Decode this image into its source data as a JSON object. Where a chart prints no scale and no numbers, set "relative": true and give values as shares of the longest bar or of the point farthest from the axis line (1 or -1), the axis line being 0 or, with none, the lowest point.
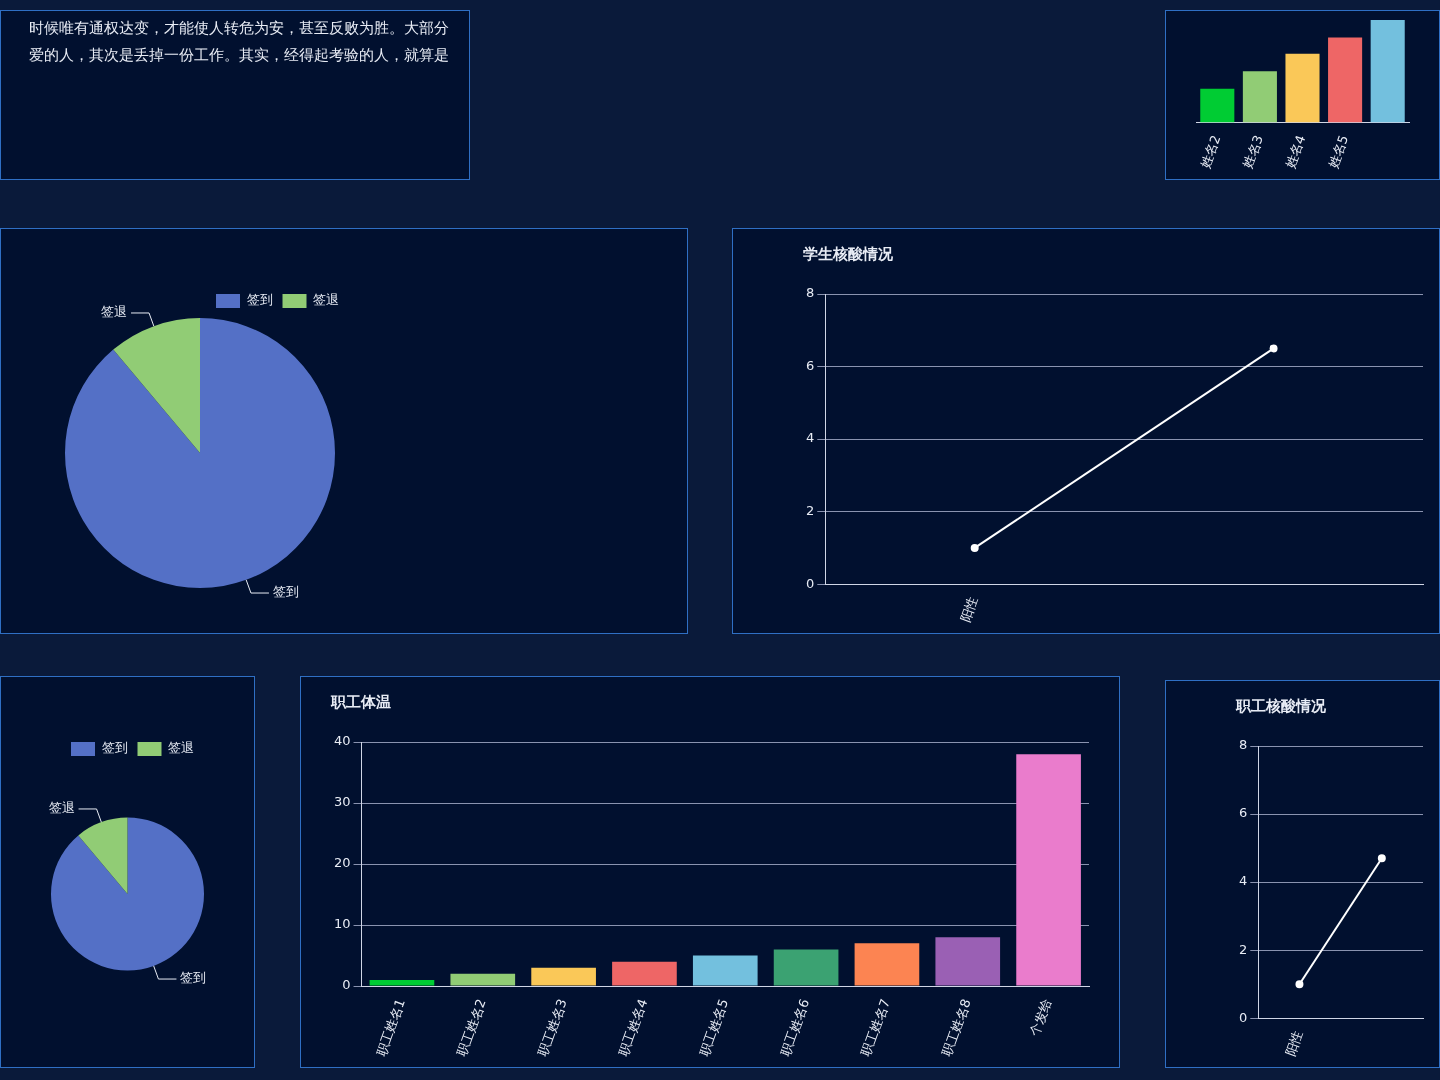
{
  "chart_data": [
    {
      "type": "other",
      "annotations": [
        "时候唯有通权达变，才能使人转危为安，甚至反败为胜。大部分",
        "爱的人，其次是丢掉一份工作。其实，经得起考验的人，就算是"
      ]
    },
    {
      "type": "bar",
      "categories": [
        "姓名2",
        "姓名3",
        "姓名4",
        "姓名5",
        null
      ],
      "values": [
        0.33,
        0.5,
        0.67,
        0.83,
        1
      ],
      "colors": [
        "#00cc33",
        "#91cc75",
        "#fac858",
        "#ee6666",
        "#73c0de"
      ],
      "relative": true
    },
    {
      "type": "pie",
      "categories": [
        "签到",
        "签退"
      ],
      "values": [
        88.89,
        11.11
      ],
      "colors": [
        "#5470c6",
        "#91cc75"
      ],
      "legend": "top right"
    },
    {
      "type": "line",
      "title": "学生核酸情况",
      "categories": [
        "阳性",
        null
      ],
      "series": [
        {
          "color": "#ffffff",
          "values": [
            1,
            6.5
          ]
        }
      ],
      "ylim": [
        0,
        8
      ],
      "yticks": [
        0,
        2,
        4,
        6,
        8
      ],
      "grid": "y",
      "marker": "circle"
    },
    {
      "type": "pie",
      "categories": [
        "签到",
        "签退"
      ],
      "values": [
        88.89,
        11.11
      ],
      "colors": [
        "#5470c6",
        "#91cc75"
      ],
      "legend": "top right"
    },
    {
      "type": "bar",
      "title": "职工体温",
      "categories": [
        "职工姓名1",
        "职工姓名2",
        "职工姓名3",
        "职工姓名4",
        "职工姓名5",
        "职工姓名6",
        "职工姓名7",
        "职工姓名8",
        "个发给"
      ],
      "values": [
        1,
        2,
        3,
        4,
        5,
        6,
        7,
        8,
        38
      ],
      "colors": [
        "#00cc33",
        "#91cc75",
        "#fac858",
        "#ee6666",
        "#73c0de",
        "#3ba272",
        "#fc8452",
        "#9a60b4",
        "#ea7ccc"
      ],
      "ylim": [
        0,
        40
      ],
      "yticks": [
        0,
        10,
        20,
        30,
        40
      ],
      "grid": "y"
    },
    {
      "type": "line",
      "title": "职工核酸情况",
      "categories": [
        "阳性",
        null
      ],
      "series": [
        {
          "color": "#ffffff",
          "values": [
            1,
            4.7
          ]
        }
      ],
      "ylim": [
        0,
        8
      ],
      "yticks": [
        0,
        2,
        4,
        6,
        8
      ],
      "grid": "y",
      "marker": "circle"
    }
  ]
}
